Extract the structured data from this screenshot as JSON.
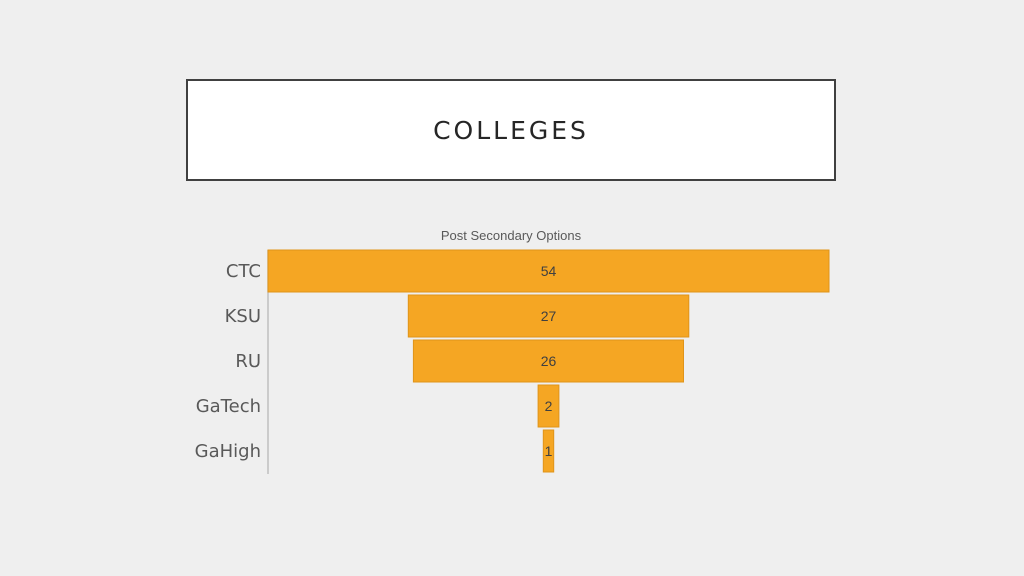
{
  "slide": {
    "title": "COLLEGES"
  },
  "chart_data": {
    "type": "bar",
    "subtype": "funnel",
    "title": "Post Secondary Options",
    "categories": [
      "CTC",
      "KSU",
      "RU",
      "GaTech",
      "GaHigh"
    ],
    "values": [
      54,
      27,
      26,
      2,
      1
    ],
    "color": "#f5a623",
    "bar_border_color": "#e0941a",
    "legend": "none",
    "grid": false
  }
}
